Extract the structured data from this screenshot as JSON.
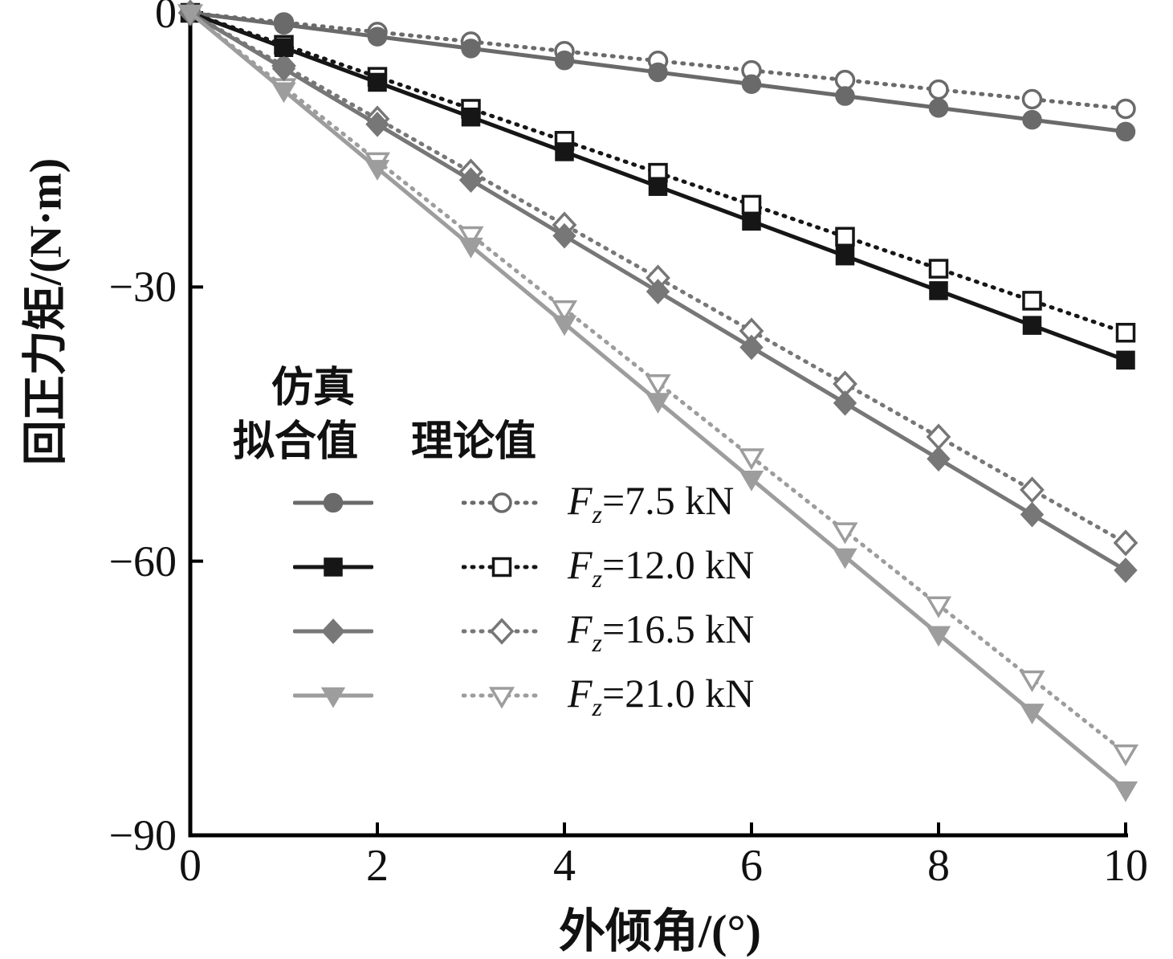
{
  "chart_data": {
    "type": "line",
    "title": "",
    "xlabel": "外倾角/(°)",
    "ylabel": "回正力矩/(N·m)",
    "xlim": [
      0,
      10
    ],
    "ylim": [
      -90,
      0
    ],
    "xticks": [
      0,
      2,
      4,
      6,
      8,
      10
    ],
    "yticks": [
      0,
      -30,
      -60,
      -90
    ],
    "xtick_labels": [
      "0",
      "2",
      "4",
      "6",
      "8",
      "10"
    ],
    "ytick_labels": [
      "0",
      "−30",
      "−60",
      "−90"
    ],
    "grid": false,
    "legend_position": "inside-left-middle",
    "x": [
      0,
      1,
      2,
      3,
      4,
      5,
      6,
      7,
      8,
      9,
      10
    ],
    "legend": {
      "sim_title": "仿真",
      "sim_subtitle": "拟合值",
      "theory_title": "理论值",
      "rows": [
        {
          "f": "F",
          "sub": "z",
          "value": "=7.5 kN"
        },
        {
          "f": "F",
          "sub": "z",
          "value": "=12.0 kN"
        },
        {
          "f": "F",
          "sub": "z",
          "value": "=16.5 kN"
        },
        {
          "f": "F",
          "sub": "z",
          "value": "=21.0 kN"
        }
      ]
    },
    "series": [
      {
        "name": "仿真拟合值 Fz=7.5 kN",
        "role": "sim",
        "marker": "circle",
        "linestyle": "solid",
        "color": "#6a6a6a",
        "values": [
          0,
          -1.3,
          -2.6,
          -3.9,
          -5.2,
          -6.5,
          -7.8,
          -9.1,
          -10.4,
          -11.7,
          -13.0
        ]
      },
      {
        "name": "理论值 Fz=7.5 kN",
        "role": "theory",
        "marker": "circle",
        "linestyle": "dotted",
        "color": "#6a6a6a",
        "values": [
          0,
          -1.05,
          -2.1,
          -3.15,
          -4.2,
          -5.25,
          -6.3,
          -7.35,
          -8.4,
          -9.45,
          -10.5
        ]
      },
      {
        "name": "仿真拟合值 Fz=12.0 kN",
        "role": "sim",
        "marker": "square",
        "linestyle": "solid",
        "color": "#161616",
        "values": [
          0,
          -3.8,
          -7.6,
          -11.4,
          -15.2,
          -19.0,
          -22.8,
          -26.6,
          -30.4,
          -34.2,
          -38.0
        ]
      },
      {
        "name": "理论值 Fz=12.0 kN",
        "role": "theory",
        "marker": "square",
        "linestyle": "dotted",
        "color": "#161616",
        "values": [
          0,
          -3.5,
          -7.0,
          -10.5,
          -14.0,
          -17.5,
          -21.0,
          -24.5,
          -28.0,
          -31.5,
          -35.0
        ]
      },
      {
        "name": "仿真拟合值 Fz=16.5 kN",
        "role": "sim",
        "marker": "diamond",
        "linestyle": "solid",
        "color": "#777777",
        "values": [
          0,
          -6.1,
          -12.2,
          -18.3,
          -24.4,
          -30.5,
          -36.6,
          -42.7,
          -48.8,
          -54.9,
          -61.0
        ]
      },
      {
        "name": "理论值 Fz=16.5 kN",
        "role": "theory",
        "marker": "diamond",
        "linestyle": "dotted",
        "color": "#777777",
        "values": [
          0,
          -5.8,
          -11.6,
          -17.4,
          -23.2,
          -29.0,
          -34.8,
          -40.6,
          -46.4,
          -52.2,
          -58.0
        ]
      },
      {
        "name": "仿真拟合值 Fz=21.0 kN",
        "role": "sim",
        "marker": "triangle-down",
        "linestyle": "solid",
        "color": "#9d9d9d",
        "values": [
          0,
          -8.5,
          -17.0,
          -25.5,
          -34.0,
          -42.5,
          -51.0,
          -59.5,
          -68.0,
          -76.5,
          -85.0
        ]
      },
      {
        "name": "理论值 Fz=21.0 kN",
        "role": "theory",
        "marker": "triangle-down",
        "linestyle": "dotted",
        "color": "#9d9d9d",
        "values": [
          0,
          -8.1,
          -16.2,
          -24.3,
          -32.4,
          -40.5,
          -48.6,
          -56.7,
          -64.8,
          -72.9,
          -81.0
        ]
      }
    ]
  }
}
